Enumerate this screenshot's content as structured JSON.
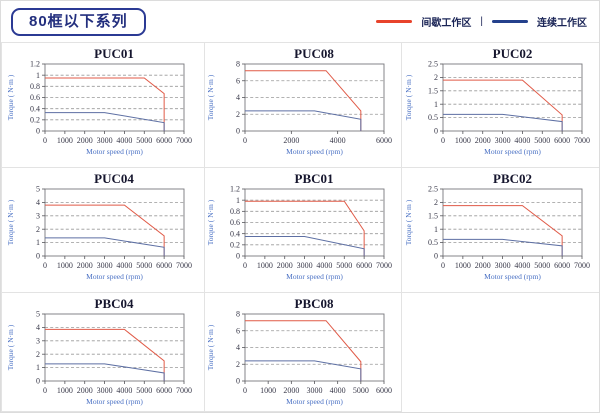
{
  "header": {
    "title": "80框以下系列"
  },
  "legend": {
    "separator": "|",
    "items": [
      {
        "label": "间歇工作区",
        "zone": "intermittent"
      },
      {
        "label": "连续工作区",
        "zone": "continuous"
      }
    ]
  },
  "colors": {
    "legend_intermittent": "#e8432b",
    "legend_continuous": "#24408c",
    "plot_intermittent": "#e05a47",
    "plot_continuous": "#5d6fa3",
    "axis_label_blue": "#4a71c4",
    "accent_navy": "#232f7e",
    "cell_border": "#e3e3e3"
  },
  "chart_data": [
    {
      "type": "line",
      "title": "PUC01",
      "xlabel": "Motor speed (rpm)",
      "ylabel": "Torque ( N·m )",
      "xlim": [
        0,
        7000
      ],
      "ylim": [
        0,
        1.2
      ],
      "xticks": [
        0,
        1000,
        2000,
        3000,
        4000,
        5000,
        6000,
        7000
      ],
      "yticks": [
        0,
        0.2,
        0.4,
        0.6,
        0.8,
        1,
        1.2
      ],
      "grid": "dashed-horizontal",
      "legend_position": "none",
      "series": [
        {
          "name": "间歇工作区",
          "zone": "intermittent",
          "points": [
            [
              0,
              0.95
            ],
            [
              5000,
              0.95
            ],
            [
              6000,
              0.67
            ],
            [
              6000,
              0
            ]
          ]
        },
        {
          "name": "连续工作区",
          "zone": "continuous",
          "points": [
            [
              0,
              0.33
            ],
            [
              3000,
              0.33
            ],
            [
              6000,
              0.15
            ],
            [
              6000,
              0
            ]
          ]
        }
      ]
    },
    {
      "type": "line",
      "title": "PUC08",
      "xlabel": "Motor speed (rpm)",
      "ylabel": "Torque ( N·m )",
      "xlim": [
        0,
        6000
      ],
      "ylim": [
        0,
        8
      ],
      "xticks": [
        0,
        2000,
        4000,
        6000
      ],
      "yticks": [
        0,
        2,
        4,
        6,
        8
      ],
      "grid": "dashed-horizontal",
      "legend_position": "none",
      "series": [
        {
          "name": "间歇工作区",
          "zone": "intermittent",
          "points": [
            [
              0,
              7.2
            ],
            [
              3500,
              7.2
            ],
            [
              5000,
              2.4
            ],
            [
              5000,
              0
            ]
          ]
        },
        {
          "name": "连续工作区",
          "zone": "continuous",
          "points": [
            [
              0,
              2.4
            ],
            [
              3000,
              2.4
            ],
            [
              5000,
              1.4
            ],
            [
              5000,
              0
            ]
          ]
        }
      ]
    },
    {
      "type": "line",
      "title": "PUC02",
      "xlabel": "Motor speed (rpm)",
      "ylabel": "Torque ( N·m )",
      "xlim": [
        0,
        7000
      ],
      "ylim": [
        0,
        2.5
      ],
      "xticks": [
        0,
        1000,
        2000,
        3000,
        4000,
        5000,
        6000,
        7000
      ],
      "yticks": [
        0,
        0.5,
        1,
        1.5,
        2,
        2.5
      ],
      "grid": "dashed-horizontal",
      "legend_position": "none",
      "series": [
        {
          "name": "间歇工作区",
          "zone": "intermittent",
          "points": [
            [
              0,
              1.9
            ],
            [
              4000,
              1.9
            ],
            [
              6000,
              0.6
            ],
            [
              6000,
              0
            ]
          ]
        },
        {
          "name": "连续工作区",
          "zone": "continuous",
          "points": [
            [
              0,
              0.62
            ],
            [
              3000,
              0.62
            ],
            [
              6000,
              0.35
            ],
            [
              6000,
              0
            ]
          ]
        }
      ]
    },
    {
      "type": "line",
      "title": "PUC04",
      "xlabel": "Motor speed (rpm)",
      "ylabel": "Torque ( N·m )",
      "xlim": [
        0,
        7000
      ],
      "ylim": [
        0,
        5
      ],
      "xticks": [
        0,
        1000,
        2000,
        3000,
        4000,
        5000,
        6000,
        7000
      ],
      "yticks": [
        0,
        1,
        2,
        3,
        4,
        5
      ],
      "grid": "dashed-horizontal",
      "legend_position": "none",
      "series": [
        {
          "name": "间歇工作区",
          "zone": "intermittent",
          "points": [
            [
              0,
              3.8
            ],
            [
              4000,
              3.8
            ],
            [
              6000,
              1.5
            ],
            [
              6000,
              0
            ]
          ]
        },
        {
          "name": "连续工作区",
          "zone": "continuous",
          "points": [
            [
              0,
              1.35
            ],
            [
              3000,
              1.35
            ],
            [
              6000,
              0.65
            ],
            [
              6000,
              0
            ]
          ]
        }
      ]
    },
    {
      "type": "line",
      "title": "PBC01",
      "xlabel": "Motor speed (rpm)",
      "ylabel": "Torque ( N·m )",
      "xlim": [
        0,
        7000
      ],
      "ylim": [
        0,
        1.2
      ],
      "xticks": [
        0,
        1000,
        2000,
        3000,
        4000,
        5000,
        6000,
        7000
      ],
      "yticks": [
        0,
        0.2,
        0.4,
        0.6,
        0.8,
        1,
        1.2
      ],
      "grid": "dashed-horizontal",
      "legend_position": "none",
      "series": [
        {
          "name": "间歇工作区",
          "zone": "intermittent",
          "points": [
            [
              0,
              0.98
            ],
            [
              5000,
              0.98
            ],
            [
              6000,
              0.45
            ],
            [
              6000,
              0
            ]
          ]
        },
        {
          "name": "连续工作区",
          "zone": "continuous",
          "points": [
            [
              0,
              0.35
            ],
            [
              3000,
              0.35
            ],
            [
              6000,
              0.13
            ],
            [
              6000,
              0
            ]
          ]
        }
      ]
    },
    {
      "type": "line",
      "title": "PBC02",
      "xlabel": "Motor speed (rpm)",
      "ylabel": "Torque ( N·m )",
      "xlim": [
        0,
        7000
      ],
      "ylim": [
        0,
        2.5
      ],
      "xticks": [
        0,
        1000,
        2000,
        3000,
        4000,
        5000,
        6000,
        7000
      ],
      "yticks": [
        0,
        0.5,
        1,
        1.5,
        2,
        2.5
      ],
      "grid": "dashed-horizontal",
      "legend_position": "none",
      "series": [
        {
          "name": "间歇工作区",
          "zone": "intermittent",
          "points": [
            [
              0,
              1.88
            ],
            [
              4000,
              1.88
            ],
            [
              6000,
              0.75
            ],
            [
              6000,
              0
            ]
          ]
        },
        {
          "name": "连续工作区",
          "zone": "continuous",
          "points": [
            [
              0,
              0.62
            ],
            [
              3000,
              0.62
            ],
            [
              6000,
              0.38
            ],
            [
              6000,
              0
            ]
          ]
        }
      ]
    },
    {
      "type": "line",
      "title": "PBC04",
      "xlabel": "Motor speed (rpm)",
      "ylabel": "Torque ( N·m )",
      "xlim": [
        0,
        7000
      ],
      "ylim": [
        0,
        5
      ],
      "xticks": [
        0,
        1000,
        2000,
        3000,
        4000,
        5000,
        6000,
        7000
      ],
      "yticks": [
        0,
        1,
        2,
        3,
        4,
        5
      ],
      "grid": "dashed-horizontal",
      "legend_position": "none",
      "series": [
        {
          "name": "间歇工作区",
          "zone": "intermittent",
          "points": [
            [
              0,
              3.85
            ],
            [
              4000,
              3.85
            ],
            [
              6000,
              1.5
            ],
            [
              6000,
              0
            ]
          ]
        },
        {
          "name": "连续工作区",
          "zone": "continuous",
          "points": [
            [
              0,
              1.28
            ],
            [
              3000,
              1.28
            ],
            [
              6000,
              0.6
            ],
            [
              6000,
              0
            ]
          ]
        }
      ]
    },
    {
      "type": "line",
      "title": "PBC08",
      "xlabel": "Motor speed (rpm)",
      "ylabel": "Torque ( N·m )",
      "xlim": [
        0,
        6000
      ],
      "ylim": [
        0,
        8
      ],
      "xticks": [
        0,
        1000,
        2000,
        3000,
        4000,
        5000,
        6000
      ],
      "yticks": [
        0,
        2,
        4,
        6,
        8
      ],
      "grid": "dashed-horizontal",
      "legend_position": "none",
      "series": [
        {
          "name": "间歇工作区",
          "zone": "intermittent",
          "points": [
            [
              0,
              7.2
            ],
            [
              3500,
              7.2
            ],
            [
              5000,
              2.3
            ],
            [
              5000,
              0
            ]
          ]
        },
        {
          "name": "连续工作区",
          "zone": "continuous",
          "points": [
            [
              0,
              2.4
            ],
            [
              3000,
              2.4
            ],
            [
              5000,
              1.45
            ],
            [
              5000,
              0
            ]
          ]
        }
      ]
    }
  ]
}
